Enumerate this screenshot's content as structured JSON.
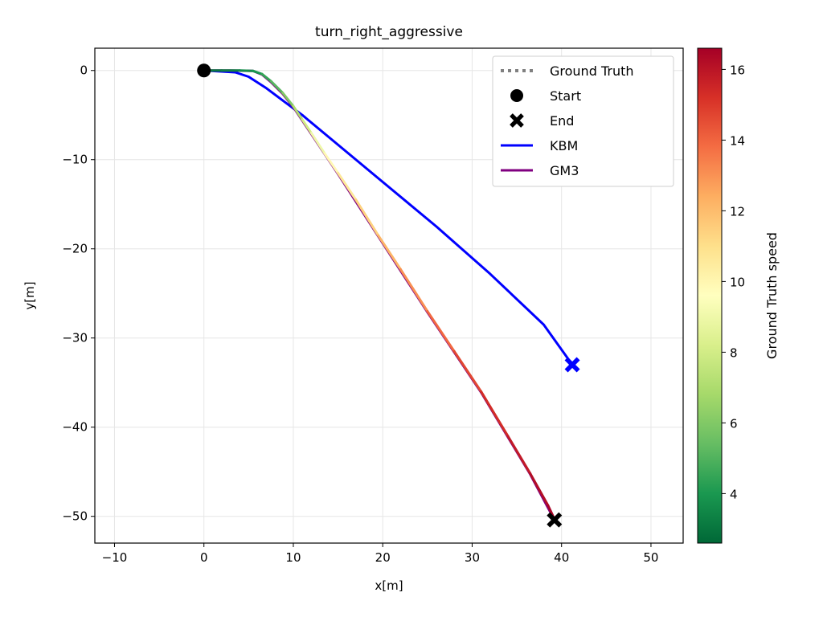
{
  "chart_data": {
    "type": "line",
    "title": "turn_right_aggressive",
    "xlabel": "x[m]",
    "ylabel": "y[m]",
    "xlim": [
      -12.2,
      53.6
    ],
    "ylim": [
      -53.0,
      2.5
    ],
    "xticks": [
      -10,
      0,
      10,
      20,
      30,
      40,
      50
    ],
    "yticks": [
      0,
      -10,
      -20,
      -30,
      -40,
      -50
    ],
    "xtick_labels": [
      "−10",
      "0",
      "10",
      "20",
      "30",
      "40",
      "50"
    ],
    "ytick_labels": [
      "0",
      "−10",
      "−20",
      "−30",
      "−40",
      "−50"
    ],
    "grid": true,
    "legend_position": "upper-right",
    "colorbar": {
      "label": "Ground Truth speed",
      "range": [
        2.6,
        16.6
      ],
      "ticks": [
        4,
        6,
        8,
        10,
        12,
        14,
        16
      ],
      "tick_labels": [
        "4",
        "6",
        "8",
        "10",
        "12",
        "14",
        "16"
      ],
      "colormap": [
        "#006837",
        "#1a9850",
        "#66bd63",
        "#a6d96a",
        "#d9ef8b",
        "#ffffbf",
        "#fee08b",
        "#fdae61",
        "#f46d43",
        "#d73027",
        "#a50026"
      ]
    },
    "legend": [
      {
        "label": "Ground Truth",
        "style": "dotted",
        "color": "#808080"
      },
      {
        "label": "Start",
        "style": "circle",
        "color": "#000000"
      },
      {
        "label": "End",
        "style": "x",
        "color": "#000000"
      },
      {
        "label": "KBM",
        "style": "line",
        "color": "#0000ff"
      },
      {
        "label": "GM3",
        "style": "line",
        "color": "#800080"
      }
    ],
    "series": [
      {
        "name": "Ground Truth",
        "color_by_speed": true,
        "points": [
          {
            "x": 0,
            "y": 0,
            "speed": 3.0
          },
          {
            "x": 2,
            "y": 0,
            "speed": 3.2
          },
          {
            "x": 4,
            "y": 0,
            "speed": 3.5
          },
          {
            "x": 5.5,
            "y": -0.05,
            "speed": 3.8
          },
          {
            "x": 6.5,
            "y": -0.4,
            "speed": 4.2
          },
          {
            "x": 7.5,
            "y": -1.2,
            "speed": 4.8
          },
          {
            "x": 8.8,
            "y": -2.5,
            "speed": 5.5
          },
          {
            "x": 10,
            "y": -4.0,
            "speed": 6.5
          },
          {
            "x": 11,
            "y": -5.5,
            "speed": 7.5
          },
          {
            "x": 12,
            "y": -7.0,
            "speed": 8.5
          },
          {
            "x": 13.5,
            "y": -9.3,
            "speed": 9.5
          },
          {
            "x": 15,
            "y": -11.5,
            "speed": 10.3
          },
          {
            "x": 17,
            "y": -14.5,
            "speed": 11.0
          },
          {
            "x": 19.5,
            "y": -18.5,
            "speed": 11.8
          },
          {
            "x": 22,
            "y": -22.3,
            "speed": 12.6
          },
          {
            "x": 25,
            "y": -27.0,
            "speed": 13.5
          },
          {
            "x": 28,
            "y": -31.5,
            "speed": 14.3
          },
          {
            "x": 31,
            "y": -36.0,
            "speed": 15.0
          },
          {
            "x": 34,
            "y": -41.0,
            "speed": 15.6
          },
          {
            "x": 36.5,
            "y": -45.2,
            "speed": 16.0
          },
          {
            "x": 38.5,
            "y": -48.8,
            "speed": 16.4
          },
          {
            "x": 39.2,
            "y": -50.3,
            "speed": 16.6
          }
        ]
      },
      {
        "name": "KBM",
        "color": "#0000ff",
        "points": [
          {
            "x": 0,
            "y": 0
          },
          {
            "x": 3.5,
            "y": -0.2
          },
          {
            "x": 5,
            "y": -0.7
          },
          {
            "x": 7,
            "y": -2.0
          },
          {
            "x": 9,
            "y": -3.5
          },
          {
            "x": 11,
            "y": -5.0
          },
          {
            "x": 14,
            "y": -7.5
          },
          {
            "x": 20,
            "y": -12.5
          },
          {
            "x": 26,
            "y": -17.5
          },
          {
            "x": 32,
            "y": -22.8
          },
          {
            "x": 38,
            "y": -28.5
          },
          {
            "x": 41.2,
            "y": -33.0
          }
        ]
      },
      {
        "name": "GM3",
        "color": "#800080",
        "points": [
          {
            "x": 0,
            "y": 0
          },
          {
            "x": 3,
            "y": 0
          },
          {
            "x": 5.5,
            "y": -0.05
          },
          {
            "x": 6.5,
            "y": -0.45
          },
          {
            "x": 7.5,
            "y": -1.3
          },
          {
            "x": 8.8,
            "y": -2.6
          },
          {
            "x": 10,
            "y": -4.1
          },
          {
            "x": 12,
            "y": -7.1
          },
          {
            "x": 15,
            "y": -11.6
          },
          {
            "x": 19.5,
            "y": -18.6
          },
          {
            "x": 25,
            "y": -27.1
          },
          {
            "x": 31,
            "y": -36.1
          },
          {
            "x": 36.5,
            "y": -45.3
          },
          {
            "x": 39.2,
            "y": -50.4
          }
        ]
      }
    ],
    "markers": [
      {
        "name": "start",
        "x": 0,
        "y": 0,
        "shape": "circle",
        "color": "#000000"
      },
      {
        "name": "end-ground-truth",
        "x": 39.2,
        "y": -50.4,
        "shape": "x",
        "color": "#000000"
      },
      {
        "name": "end-kbm",
        "x": 41.2,
        "y": -33.0,
        "shape": "x",
        "color": "#0000ff"
      }
    ]
  }
}
